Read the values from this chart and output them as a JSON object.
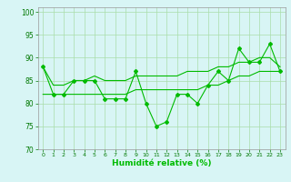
{
  "x": [
    0,
    1,
    2,
    3,
    4,
    5,
    6,
    7,
    8,
    9,
    10,
    11,
    12,
    13,
    14,
    15,
    16,
    17,
    18,
    19,
    20,
    21,
    22,
    23
  ],
  "y_main": [
    88,
    82,
    82,
    85,
    85,
    85,
    81,
    81,
    81,
    87,
    80,
    75,
    76,
    82,
    82,
    80,
    84,
    87,
    85,
    92,
    89,
    89,
    93,
    87
  ],
  "y_upper": [
    88,
    84,
    84,
    85,
    85,
    86,
    85,
    85,
    85,
    86,
    86,
    86,
    86,
    86,
    87,
    87,
    87,
    88,
    88,
    89,
    89,
    90,
    90,
    88
  ],
  "y_lower": [
    82,
    82,
    82,
    82,
    82,
    82,
    82,
    82,
    82,
    83,
    83,
    83,
    83,
    83,
    83,
    83,
    84,
    84,
    85,
    86,
    86,
    87,
    87,
    87
  ],
  "line_color": "#00bb00",
  "bg_color": "#d8f5f5",
  "grid_color": "#aaddaa",
  "xlabel": "Humidité relative (%)",
  "xlim": [
    -0.5,
    23.5
  ],
  "ylim": [
    70,
    101
  ],
  "yticks": [
    70,
    75,
    80,
    85,
    90,
    95,
    100
  ],
  "xticks": [
    0,
    1,
    2,
    3,
    4,
    5,
    6,
    7,
    8,
    9,
    10,
    11,
    12,
    13,
    14,
    15,
    16,
    17,
    18,
    19,
    20,
    21,
    22,
    23
  ]
}
